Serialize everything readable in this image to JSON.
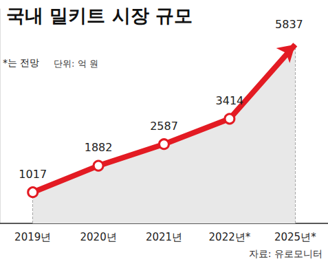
{
  "chart_data": {
    "type": "line",
    "title": "국내 밀키트 시장 규모",
    "annotations": [
      "*는 전망",
      "단위: 억 원",
      "자료: 유로모니터"
    ],
    "categories": [
      "2019년",
      "2020년",
      "2021년",
      "2022년*",
      "2025년*"
    ],
    "values": [
      1017,
      1882,
      2587,
      3414,
      5837
    ],
    "color": "#e31b23",
    "ylim": [
      0,
      7000
    ],
    "tick_labels": "x",
    "data_labels": true,
    "marker": "circle",
    "grid": false
  }
}
